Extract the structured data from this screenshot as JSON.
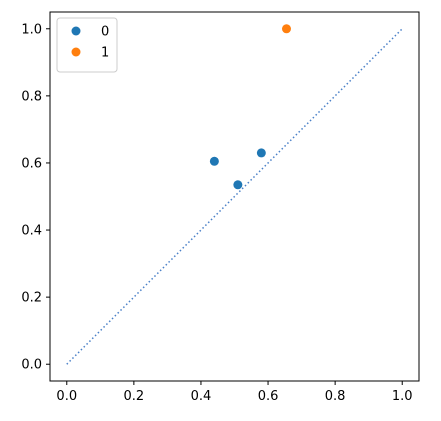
{
  "chart_data": {
    "type": "scatter",
    "title": "",
    "xlabel": "",
    "ylabel": "",
    "xlim": [
      -0.05,
      1.05
    ],
    "ylim": [
      -0.05,
      1.05
    ],
    "x_ticks": [
      0.0,
      0.2,
      0.4,
      0.6,
      0.8,
      1.0
    ],
    "x_tick_labels": [
      "0.0",
      "0.2",
      "0.4",
      "0.6",
      "0.8",
      "1.0"
    ],
    "y_ticks": [
      0.0,
      0.2,
      0.4,
      0.6,
      0.8,
      1.0
    ],
    "y_tick_labels": [
      "0.0",
      "0.2",
      "0.4",
      "0.6",
      "0.8",
      "1.0"
    ],
    "grid": false,
    "legend_position": "top-left",
    "series": [
      {
        "name": "0",
        "color": "#1f77b4",
        "points": [
          {
            "x": 0.44,
            "y": 0.605
          },
          {
            "x": 0.51,
            "y": 0.535
          },
          {
            "x": 0.58,
            "y": 0.63
          }
        ]
      },
      {
        "name": "1",
        "color": "#ff7f0e",
        "points": [
          {
            "x": 0.655,
            "y": 1.0
          }
        ]
      }
    ],
    "reference_line": {
      "style": "dotted",
      "color": "#4a80c8",
      "from": [
        0.0,
        0.0
      ],
      "to": [
        1.0,
        1.0
      ]
    }
  }
}
